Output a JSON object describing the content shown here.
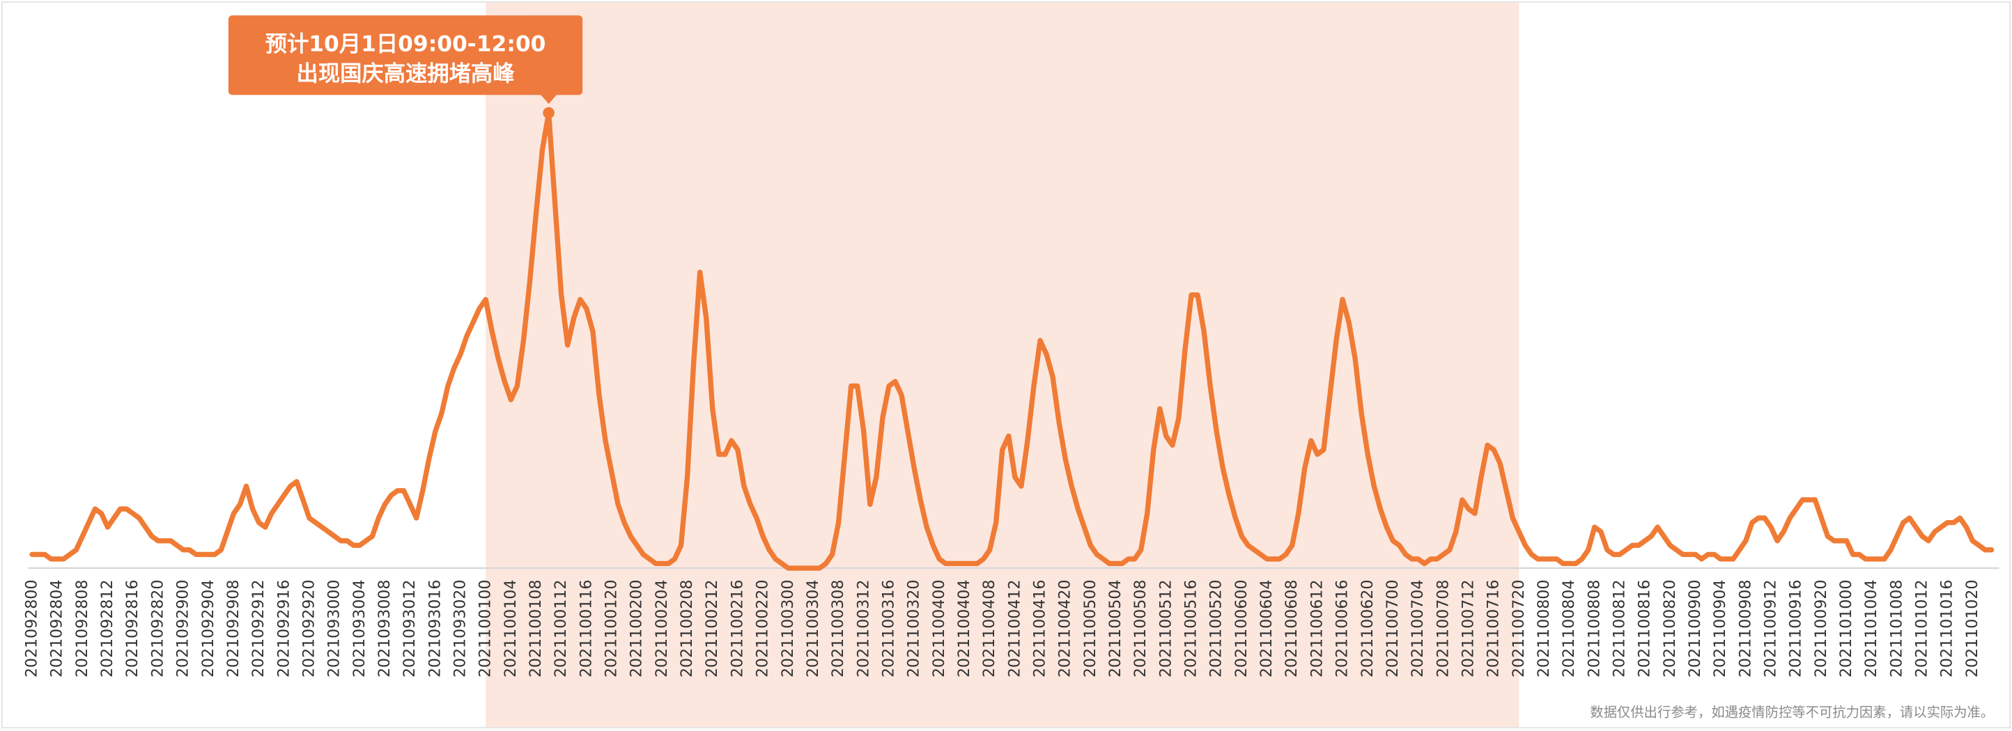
{
  "chart_data": {
    "type": "line",
    "annotation": {
      "text": [
        "预计10月1日09:00-12:00",
        "出现国庆高速拥堵高峰"
      ],
      "category_index": 82
    },
    "footnote": "数据仅供出行参考，如遇疫情防控等不可抗力因素，请以实际为准。",
    "highlight": {
      "start": "2021100100",
      "end": "2021100720",
      "color": "#fce7df"
    },
    "color": "#f07b35",
    "ylim": [
      0,
      100
    ],
    "categories": [
      "2021092800",
      null,
      null,
      null,
      "2021092804",
      null,
      null,
      null,
      "2021092808",
      null,
      null,
      null,
      "2021092812",
      null,
      null,
      null,
      "2021092816",
      null,
      null,
      null,
      "2021092820",
      null,
      null,
      null,
      "2021092900",
      null,
      null,
      null,
      "2021092904",
      null,
      null,
      null,
      "2021092908",
      null,
      null,
      null,
      "2021092912",
      null,
      null,
      null,
      "2021092916",
      null,
      null,
      null,
      "2021092920",
      null,
      null,
      null,
      "2021093000",
      null,
      null,
      null,
      "2021093004",
      null,
      null,
      null,
      "2021093008",
      null,
      null,
      null,
      "2021093012",
      null,
      null,
      null,
      "2021093016",
      null,
      null,
      null,
      "2021093020",
      null,
      null,
      null,
      "2021100100",
      null,
      null,
      null,
      "2021100104",
      null,
      null,
      null,
      "2021100108",
      null,
      null,
      null,
      "2021100112",
      null,
      null,
      null,
      "2021100116",
      null,
      null,
      null,
      "2021100120",
      null,
      null,
      null,
      "2021100200",
      null,
      null,
      null,
      "2021100204",
      null,
      null,
      null,
      "2021100208",
      null,
      null,
      null,
      "2021100212",
      null,
      null,
      null,
      "2021100216",
      null,
      null,
      null,
      "2021100220",
      null,
      null,
      null,
      "2021100300",
      null,
      null,
      null,
      "2021100304",
      null,
      null,
      null,
      "2021100308",
      null,
      null,
      null,
      "2021100312",
      null,
      null,
      null,
      "2021100316",
      null,
      null,
      null,
      "2021100320",
      null,
      null,
      null,
      "2021100400",
      null,
      null,
      null,
      "2021100404",
      null,
      null,
      null,
      "2021100408",
      null,
      null,
      null,
      "2021100412",
      null,
      null,
      null,
      "2021100416",
      null,
      null,
      null,
      "2021100420",
      null,
      null,
      null,
      "2021100500",
      null,
      null,
      null,
      "2021100504",
      null,
      null,
      null,
      "2021100508",
      null,
      null,
      null,
      "2021100512",
      null,
      null,
      null,
      "2021100516",
      null,
      null,
      null,
      "2021100520",
      null,
      null,
      null,
      "2021100600",
      null,
      null,
      null,
      "2021100604",
      null,
      null,
      null,
      "2021100608",
      null,
      null,
      null,
      "2021100612",
      null,
      null,
      null,
      "2021100616",
      null,
      null,
      null,
      "2021100620",
      null,
      null,
      null,
      "2021100700",
      null,
      null,
      null,
      "2021100704",
      null,
      null,
      null,
      "2021100708",
      null,
      null,
      null,
      "2021100712",
      null,
      null,
      null,
      "2021100716",
      null,
      null,
      null,
      "2021100720",
      null,
      null,
      null,
      "2021100800",
      null,
      null,
      null,
      "2021100804",
      null,
      null,
      null,
      "2021100808",
      null,
      null,
      null,
      "2021100812",
      null,
      null,
      null,
      "2021100816",
      null,
      null,
      null,
      "2021100820",
      null,
      null,
      null,
      "2021100900",
      null,
      null,
      null,
      "2021100904",
      null,
      null,
      null,
      "2021100908",
      null,
      null,
      null,
      "2021100912",
      null,
      null,
      null,
      "2021100916",
      null,
      null,
      null,
      "2021100920",
      null,
      null,
      null,
      "2021101000",
      null,
      null,
      null,
      "2021101004",
      null,
      null,
      null,
      "2021101008",
      null,
      null,
      null,
      "2021101012",
      null,
      null,
      null,
      "2021101016",
      null,
      null,
      null,
      "2021101020",
      null,
      null,
      null
    ],
    "values": [
      3,
      3,
      3,
      2,
      2,
      2,
      3,
      4,
      7,
      10,
      13,
      12,
      9,
      11,
      13,
      13,
      12,
      11,
      9,
      7,
      6,
      6,
      6,
      5,
      4,
      4,
      3,
      3,
      3,
      3,
      4,
      8,
      12,
      14,
      18,
      13,
      10,
      9,
      12,
      14,
      16,
      18,
      19,
      15,
      11,
      10,
      9,
      8,
      7,
      6,
      6,
      5,
      5,
      6,
      7,
      11,
      14,
      16,
      17,
      17,
      14,
      11,
      17,
      24,
      30,
      34,
      40,
      44,
      47,
      51,
      54,
      57,
      59,
      52,
      46,
      41,
      37,
      40,
      50,
      63,
      78,
      92,
      100,
      80,
      60,
      49,
      55,
      59,
      57,
      52,
      38,
      28,
      21,
      14,
      10,
      7,
      5,
      3,
      2,
      1,
      1,
      1,
      2,
      5,
      20,
      45,
      65,
      55,
      35,
      25,
      25,
      28,
      26,
      18,
      14,
      11,
      7,
      4,
      2,
      1,
      0,
      0,
      0,
      0,
      0,
      0,
      1,
      3,
      10,
      25,
      40,
      40,
      30,
      14,
      20,
      33,
      40,
      41,
      38,
      30,
      22,
      15,
      9,
      5,
      2,
      1,
      1,
      1,
      1,
      1,
      1,
      2,
      4,
      10,
      26,
      29,
      20,
      18,
      28,
      40,
      50,
      47,
      42,
      32,
      24,
      18,
      13,
      9,
      5,
      3,
      2,
      1,
      1,
      1,
      2,
      2,
      4,
      12,
      26,
      35,
      29,
      27,
      33,
      48,
      60,
      60,
      52,
      40,
      30,
      22,
      16,
      11,
      7,
      5,
      4,
      3,
      2,
      2,
      2,
      3,
      5,
      12,
      22,
      28,
      25,
      26,
      38,
      50,
      59,
      54,
      46,
      34,
      25,
      18,
      13,
      9,
      6,
      5,
      3,
      2,
      2,
      1,
      2,
      2,
      3,
      4,
      8,
      15,
      13,
      12,
      20,
      27,
      26,
      23,
      17,
      11,
      8,
      5,
      3,
      2,
      2,
      2,
      2,
      1,
      1,
      1,
      2,
      4,
      9,
      8,
      4,
      3,
      3,
      4,
      5,
      5,
      6,
      7,
      9,
      7,
      5,
      4,
      3,
      3,
      3,
      2,
      3,
      3,
      2,
      2,
      2,
      4,
      6,
      10,
      11,
      11,
      9,
      6,
      8,
      11,
      13,
      15,
      15,
      15,
      11,
      7,
      6,
      6,
      6,
      3,
      3,
      2,
      2,
      2,
      2,
      4,
      7,
      10,
      11,
      9,
      7,
      6,
      8,
      9,
      10,
      10,
      11,
      9,
      6,
      5,
      4,
      4
    ]
  }
}
